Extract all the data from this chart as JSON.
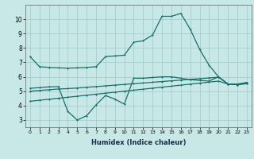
{
  "bg_color": "#c8e8e8",
  "grid_color": "#a0c8c8",
  "line_color": "#1a6e6a",
  "xlabel": "Humidex (Indice chaleur)",
  "xlim": [
    -0.5,
    23.5
  ],
  "ylim": [
    2.5,
    11.0
  ],
  "yticks": [
    3,
    4,
    5,
    6,
    7,
    8,
    9,
    10
  ],
  "xticks": [
    0,
    1,
    2,
    3,
    4,
    5,
    6,
    7,
    8,
    9,
    10,
    11,
    12,
    13,
    14,
    15,
    16,
    17,
    18,
    19,
    20,
    21,
    22,
    23
  ],
  "series1_x": [
    0,
    1,
    2,
    3,
    4,
    5,
    6,
    7,
    8,
    9,
    10,
    11,
    12,
    13,
    14,
    15,
    16,
    17,
    18,
    19,
    20,
    21,
    22,
    23
  ],
  "series1_y": [
    7.4,
    6.7,
    6.65,
    6.62,
    6.6,
    6.62,
    6.65,
    6.7,
    7.4,
    7.45,
    7.5,
    8.4,
    8.5,
    8.9,
    10.2,
    10.2,
    10.4,
    9.3,
    7.9,
    6.8,
    6.0,
    5.5,
    5.45,
    5.6
  ],
  "series2_x": [
    0,
    1,
    2,
    3,
    4,
    5,
    6,
    7,
    8,
    9,
    10,
    11,
    12,
    13,
    14,
    15,
    16,
    17,
    18,
    19,
    20,
    21,
    22,
    23
  ],
  "series2_y": [
    5.2,
    5.25,
    5.3,
    5.32,
    3.6,
    3.0,
    3.3,
    4.05,
    4.7,
    4.45,
    4.1,
    5.9,
    5.9,
    5.95,
    6.0,
    6.0,
    5.9,
    5.8,
    5.75,
    5.7,
    6.0,
    5.5,
    5.45,
    5.55
  ],
  "series3_x": [
    0,
    1,
    2,
    3,
    4,
    5,
    6,
    7,
    8,
    9,
    10,
    11,
    12,
    13,
    14,
    15,
    16,
    17,
    18,
    19,
    20,
    21,
    22,
    23
  ],
  "series3_y": [
    5.0,
    5.05,
    5.1,
    5.15,
    5.18,
    5.22,
    5.27,
    5.32,
    5.37,
    5.42,
    5.47,
    5.52,
    5.57,
    5.62,
    5.67,
    5.72,
    5.77,
    5.82,
    5.87,
    5.92,
    5.97,
    5.5,
    5.5,
    5.6
  ],
  "series4_x": [
    0,
    1,
    2,
    3,
    4,
    5,
    6,
    7,
    8,
    9,
    10,
    11,
    12,
    13,
    14,
    15,
    16,
    17,
    18,
    19,
    20,
    21,
    22,
    23
  ],
  "series4_y": [
    4.3,
    4.37,
    4.44,
    4.51,
    4.58,
    4.65,
    4.72,
    4.79,
    4.86,
    4.93,
    5.0,
    5.07,
    5.14,
    5.21,
    5.28,
    5.35,
    5.42,
    5.49,
    5.56,
    5.63,
    5.7,
    5.5,
    5.45,
    5.52
  ],
  "lw": 0.9,
  "ms": 2.0,
  "xlabel_fontsize": 6,
  "tick_fontsize_x": 4.5,
  "tick_fontsize_y": 5.5
}
